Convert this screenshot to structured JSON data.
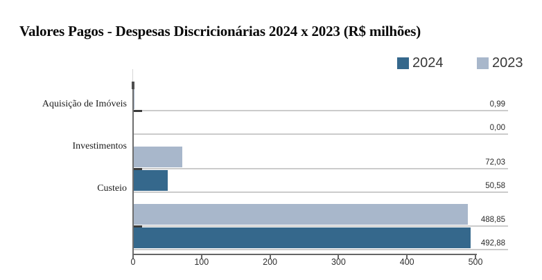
{
  "title": "Valores Pagos - Despesas Discricionárias 2024 x 2023 (R$ milhões)",
  "legend": {
    "position": "top-right",
    "items": [
      {
        "label": "2024",
        "color": "#35688c"
      },
      {
        "label": "2023",
        "color": "#a8b7cb"
      }
    ]
  },
  "chart_data": {
    "type": "bar",
    "orientation": "horizontal",
    "title": "Valores Pagos - Despesas Discricionárias 2024 x 2023 (R$ milhões)",
    "categories": [
      "Aquisição de Imóveis",
      "Investimentos",
      "Custeio"
    ],
    "series": [
      {
        "name": "2024",
        "color": "#35688c",
        "values": [
          0.0,
          50.58,
          492.88
        ],
        "value_labels": [
          "0,00",
          "50,58",
          "492,88"
        ]
      },
      {
        "name": "2023",
        "color": "#a8b7cb",
        "values": [
          0.99,
          72.03,
          488.85
        ],
        "value_labels": [
          "0,99",
          "72,03",
          "488,85"
        ]
      }
    ],
    "bar_order_top_to_bottom_within_group": [
      "2023",
      "2024"
    ],
    "xlim": [
      0,
      500
    ],
    "x_ticks": [
      0,
      100,
      200,
      300,
      400,
      500
    ],
    "x_tick_labels": [
      "0",
      "100",
      "200",
      "300",
      "400",
      "500"
    ],
    "grid": "off",
    "value_labels_position": "right-edge",
    "legend_position": "top-right"
  }
}
